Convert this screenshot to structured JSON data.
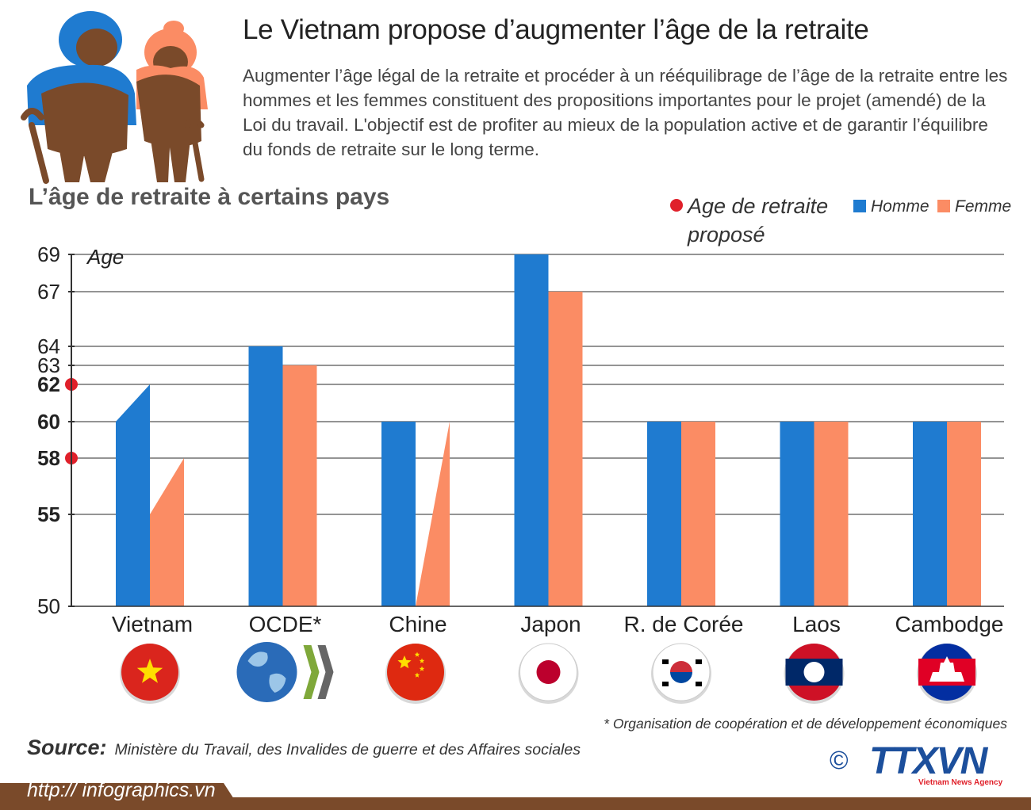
{
  "header": {
    "title": "Le Vietnam propose d’augmenter l’âge de la retraite",
    "intro": "Augmenter l’âge légal de la retraite et procéder à un rééquilibrage de l’âge de la retraite entre les hommes et les femmes constituent des propositions importantes pour le projet (amendé) de la Loi du travail. L'objectif est de profiter au mieux de la population active et de garantir l’équilibre du fonds de retraite sur le long terme."
  },
  "legend": {
    "proposed_line1": "Age de retraite",
    "proposed_line2": "proposé",
    "homme": "Homme",
    "femme": "Femme"
  },
  "colors": {
    "homme": "#1f7bd0",
    "femme": "#fb8c64",
    "proposed_marker": "#e0202a",
    "footer_band": "#7a4a2a"
  },
  "chart_data": {
    "type": "bar",
    "title": "L’âge de retraite à certains pays",
    "ylabel": "Age",
    "categories": [
      "Vietnam",
      "OCDE*",
      "Chine",
      "Japon",
      "R. de Corée",
      "Laos",
      "Cambodge"
    ],
    "series": [
      {
        "name": "Homme",
        "values": [
          60,
          64,
          60,
          69,
          60,
          60,
          60
        ]
      },
      {
        "name": "Femme",
        "values": [
          55,
          63,
          50,
          67,
          60,
          60,
          60
        ]
      }
    ],
    "proposed": {
      "Homme": [
        62,
        null,
        null,
        null,
        null,
        null,
        null
      ],
      "Femme": [
        58,
        null,
        60,
        null,
        null,
        null,
        null
      ]
    },
    "yticks": [
      50,
      55,
      58,
      60,
      62,
      63,
      64,
      67,
      69
    ],
    "yticks_bold": [
      55,
      58,
      60,
      62
    ],
    "yticks_marked": [
      58,
      62
    ],
    "ylim": [
      50,
      69
    ],
    "grid": true,
    "legend_position": "top-right"
  },
  "flags": [
    "vietnam-flag-icon",
    "oecd-logo-icon",
    "china-flag-icon",
    "japan-flag-icon",
    "korea-flag-icon",
    "laos-flag-icon",
    "cambodia-flag-icon"
  ],
  "footer": {
    "footnote": "* Organisation de coopération et de développement économiques",
    "source_label": "Source:",
    "source_text": "Ministère du Travail, des Invalides de guerre et des Affaires sociales",
    "url": "http:// infographics.vn",
    "copyright": "©",
    "logo_text": "TTXVN",
    "logo_subtext": "Vietnam News Agency"
  }
}
